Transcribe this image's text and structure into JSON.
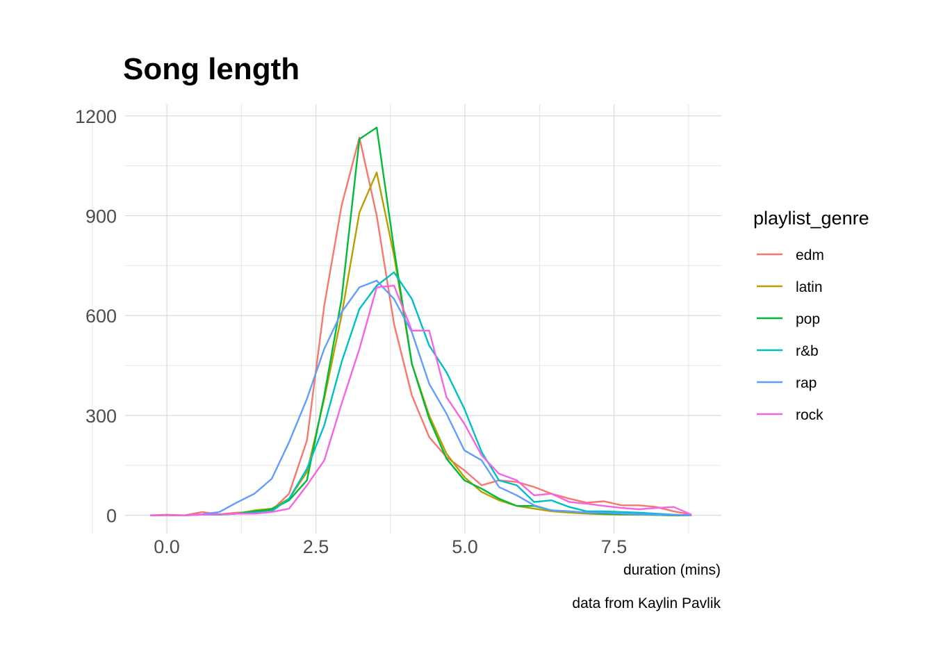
{
  "chart_data": {
    "type": "line",
    "title": "Song length",
    "xlabel": "duration (mins)",
    "ylabel": "",
    "caption": "data from Kaylin Pavlik",
    "legend_title": "playlist_genre",
    "legend_position": "right",
    "grid": true,
    "xlim": [
      -0.7,
      9.3
    ],
    "ylim": [
      -55,
      1235
    ],
    "x_ticks": [
      0.0,
      2.5,
      5.0,
      7.5
    ],
    "x_tick_labels": [
      "0.0",
      "2.5",
      "5.0",
      "7.5"
    ],
    "y_ticks": [
      0,
      300,
      600,
      900,
      1200
    ],
    "y_tick_labels": [
      "0",
      "300",
      "600",
      "900",
      "1200"
    ],
    "x": [
      -0.28,
      0.0,
      0.3,
      0.59,
      0.88,
      1.17,
      1.47,
      1.76,
      2.05,
      2.35,
      2.64,
      2.93,
      3.23,
      3.52,
      3.81,
      4.11,
      4.4,
      4.69,
      4.99,
      5.28,
      5.57,
      5.87,
      6.16,
      6.45,
      6.75,
      7.04,
      7.33,
      7.63,
      7.92,
      8.21,
      8.5,
      8.8
    ],
    "series": [
      {
        "name": "edm",
        "color": "#F8766D",
        "values": [
          0,
          2,
          0,
          10,
          3,
          8,
          10,
          15,
          65,
          225,
          630,
          930,
          1135,
          900,
          575,
          360,
          235,
          175,
          135,
          90,
          105,
          100,
          85,
          65,
          50,
          38,
          42,
          30,
          30,
          25,
          12,
          2
        ]
      },
      {
        "name": "latin",
        "color": "#B79F00",
        "values": [
          0,
          0,
          0,
          2,
          2,
          5,
          15,
          20,
          50,
          130,
          350,
          600,
          910,
          1030,
          780,
          455,
          300,
          185,
          115,
          70,
          45,
          28,
          20,
          12,
          8,
          5,
          3,
          2,
          2,
          1,
          0,
          0
        ]
      },
      {
        "name": "pop",
        "color": "#00BA38",
        "values": [
          0,
          0,
          0,
          2,
          2,
          5,
          12,
          18,
          45,
          105,
          360,
          650,
          1130,
          1165,
          800,
          455,
          290,
          170,
          105,
          80,
          50,
          28,
          28,
          15,
          12,
          8,
          5,
          3,
          2,
          1,
          0,
          0
        ]
      },
      {
        "name": "r&b",
        "color": "#00BFC4",
        "values": [
          0,
          0,
          0,
          2,
          2,
          5,
          8,
          12,
          50,
          140,
          270,
          460,
          620,
          690,
          730,
          650,
          510,
          430,
          320,
          190,
          105,
          90,
          40,
          45,
          25,
          12,
          12,
          10,
          8,
          5,
          2,
          0
        ]
      },
      {
        "name": "rap",
        "color": "#619CFF",
        "values": [
          0,
          0,
          0,
          3,
          10,
          38,
          65,
          110,
          220,
          350,
          500,
          610,
          685,
          705,
          650,
          550,
          395,
          305,
          195,
          165,
          85,
          60,
          30,
          15,
          12,
          8,
          8,
          5,
          3,
          2,
          2,
          0
        ]
      },
      {
        "name": "rock",
        "color": "#F564E3",
        "values": [
          0,
          0,
          0,
          2,
          3,
          5,
          5,
          10,
          20,
          90,
          165,
          335,
          500,
          685,
          690,
          555,
          555,
          355,
          275,
          180,
          125,
          105,
          60,
          65,
          40,
          35,
          28,
          22,
          18,
          22,
          25,
          2
        ]
      }
    ]
  }
}
